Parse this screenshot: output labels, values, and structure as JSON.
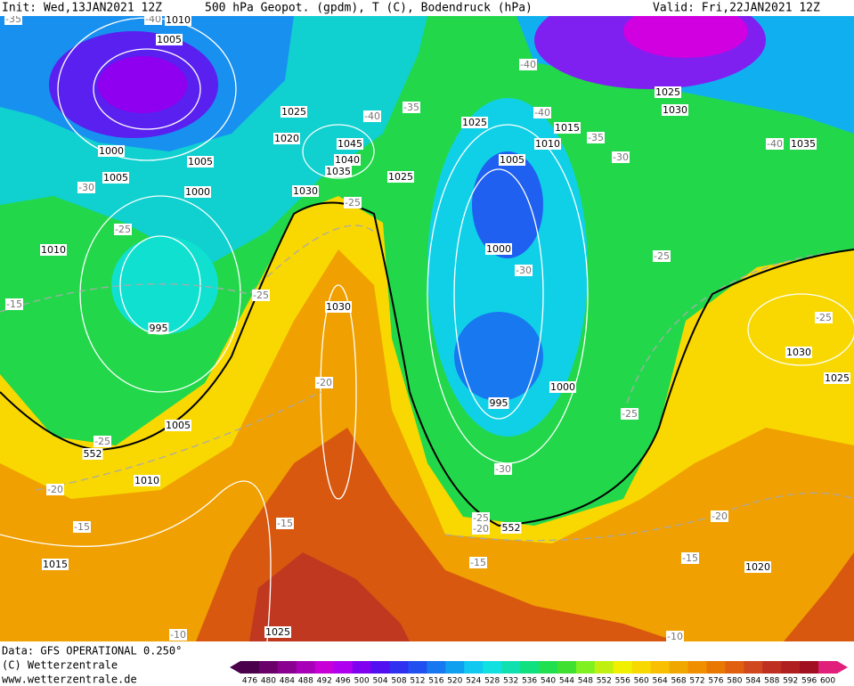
{
  "header": {
    "init": "Init: Wed,13JAN2021 12Z",
    "title": "500 hPa Geopot. (gpdm), T (C), Bodendruck (hPa)",
    "valid": "Valid: Fri,22JAN2021 12Z"
  },
  "footer": {
    "data": "Data: GFS OPERATIONAL 0.250°",
    "copyright": "(C) Wetterzentrale",
    "url": "www.wetterzentrale.de"
  },
  "colorbar": {
    "values": [
      476,
      480,
      484,
      488,
      492,
      496,
      500,
      504,
      508,
      512,
      516,
      520,
      524,
      528,
      532,
      536,
      540,
      544,
      548,
      552,
      556,
      560,
      564,
      568,
      572,
      576,
      580,
      584,
      588,
      592,
      596,
      600
    ],
    "colors": [
      "#4a004a",
      "#6a006a",
      "#8a0090",
      "#a800b8",
      "#c800d8",
      "#b000f0",
      "#8000f0",
      "#5010f0",
      "#3030f0",
      "#2050f0",
      "#1878f0",
      "#10a0f0",
      "#10c8f0",
      "#10e0e0",
      "#10e0b0",
      "#10e080",
      "#20e050",
      "#40e030",
      "#80f020",
      "#c0f010",
      "#f0f000",
      "#f8d800",
      "#f8c000",
      "#f0a800",
      "#f09000",
      "#e87800",
      "#e06010",
      "#d04820",
      "#c03020",
      "#b02020",
      "#a01020",
      "#e0207a"
    ]
  },
  "map_labels": [
    "1010",
    "1005",
    "1000",
    "1005",
    "1005",
    "1000",
    "1010",
    "995",
    "1005",
    "1010",
    "1015",
    "1025",
    "1025",
    "1020",
    "1045",
    "1040",
    "1035",
    "1030",
    "1030",
    "1025",
    "1025",
    "1015",
    "1010",
    "1005",
    "1000",
    "995",
    "1000",
    "1025",
    "1030",
    "1035",
    "1030",
    "1025",
    "1020",
    "-40",
    "-30",
    "-25",
    "-25",
    "-20",
    "-25",
    "-20",
    "-15",
    "-15",
    "-15",
    "-10",
    "-40",
    "-35",
    "-40",
    "-40",
    "-35",
    "-30",
    "-30",
    "-25",
    "-25",
    "-30",
    "-25",
    "-20",
    "-15",
    "-20",
    "-15",
    "-10",
    "-25",
    "-40",
    "-25",
    "-35",
    "552",
    "552"
  ]
}
